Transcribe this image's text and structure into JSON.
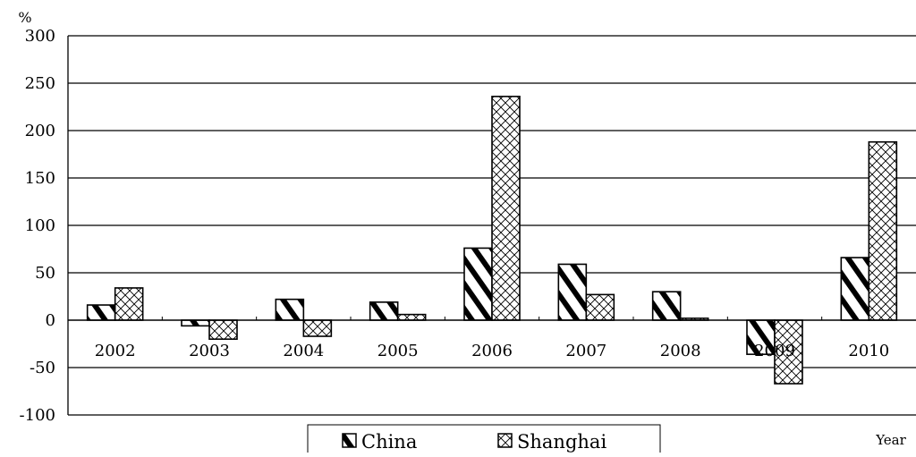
{
  "chart_data": {
    "type": "bar",
    "title": "",
    "ylabel": "%",
    "xlabel": "Year",
    "ylim": [
      -100,
      300
    ],
    "yticks": [
      300,
      250,
      200,
      150,
      100,
      50,
      0,
      -50,
      -100
    ],
    "grid": true,
    "legend_position": "bottom",
    "categories": [
      "2002",
      "2003",
      "2004",
      "2005",
      "2006",
      "2007",
      "2008",
      "2009",
      "2010"
    ],
    "series": [
      {
        "name": "China",
        "pattern": "diagonal-stripes",
        "values": [
          16,
          -6,
          22,
          19,
          76,
          59,
          30,
          -36,
          66
        ]
      },
      {
        "name": "Shanghai",
        "pattern": "cross-hatch",
        "values": [
          34,
          -20,
          -17,
          6,
          236,
          27,
          2,
          -67,
          188
        ]
      }
    ],
    "colors": {
      "axis": "#000000",
      "bar_fill": "#ffffff",
      "bar_stroke": "#000000"
    }
  }
}
